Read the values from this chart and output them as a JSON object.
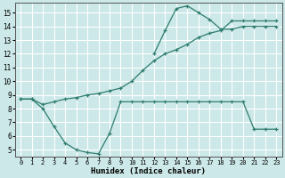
{
  "xlabel": "Humidex (Indice chaleur)",
  "bg_color": "#cce8e8",
  "line_color": "#2e7d6e",
  "grid_color": "#ffffff",
  "ylim": [
    4.5,
    15.7
  ],
  "xlim": [
    -0.5,
    23.5
  ],
  "yticks": [
    5,
    6,
    7,
    8,
    9,
    10,
    11,
    12,
    13,
    14,
    15
  ],
  "xticks": [
    0,
    1,
    2,
    3,
    4,
    5,
    6,
    7,
    8,
    9,
    10,
    11,
    12,
    13,
    14,
    15,
    16,
    17,
    18,
    19,
    20,
    21,
    22,
    23
  ],
  "line1_x": [
    0,
    1,
    2,
    3,
    4,
    5,
    6,
    7,
    8,
    9,
    10,
    11,
    12,
    13,
    14,
    15,
    16,
    17,
    18,
    19,
    20,
    21,
    22,
    23
  ],
  "line1_y": [
    8.7,
    8.7,
    8.0,
    6.7,
    5.5,
    5.0,
    4.8,
    4.7,
    6.2,
    8.5,
    8.5,
    8.5,
    8.5,
    8.5,
    8.5,
    8.5,
    8.5,
    8.5,
    8.5,
    8.5,
    8.5,
    6.5,
    6.5,
    6.5
  ],
  "line2_x": [
    0,
    1,
    2,
    3,
    4,
    5,
    6,
    7,
    8,
    9,
    10,
    11,
    12,
    13,
    14,
    15,
    16,
    17,
    18,
    19,
    20,
    21,
    22,
    23
  ],
  "line2_y": [
    8.7,
    8.7,
    8.3,
    8.5,
    8.7,
    8.8,
    9.0,
    9.1,
    9.3,
    9.5,
    10.0,
    10.8,
    11.5,
    12.0,
    12.3,
    12.7,
    13.2,
    13.5,
    13.7,
    14.4,
    14.4,
    14.4,
    14.4,
    14.4
  ],
  "line3_x": [
    12,
    13,
    14,
    15,
    16,
    17,
    18,
    19,
    20,
    21,
    22,
    23
  ],
  "line3_y": [
    12.0,
    13.7,
    15.3,
    15.5,
    15.0,
    14.5,
    13.8,
    13.8,
    14.0,
    14.0,
    14.0,
    14.0
  ]
}
